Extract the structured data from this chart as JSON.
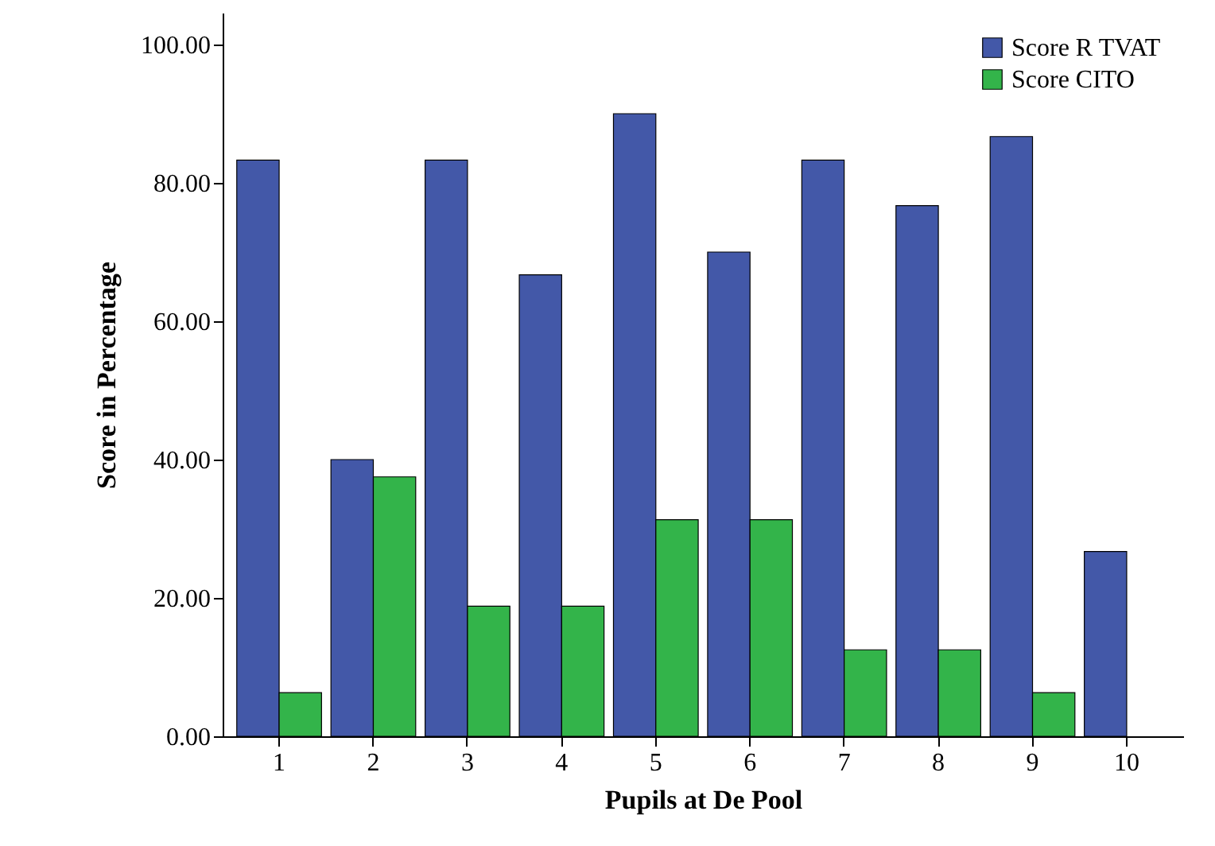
{
  "chart_data": {
    "type": "bar",
    "xlabel": "Pupils at De Pool",
    "ylabel": "Score in Percentage",
    "categories": [
      "1",
      "2",
      "3",
      "4",
      "5",
      "6",
      "7",
      "8",
      "9",
      "10"
    ],
    "series": [
      {
        "name": "Score R TVAT",
        "color": "#4358a8",
        "values": [
          83.3,
          40,
          83.3,
          66.7,
          90,
          70,
          83.3,
          76.7,
          86.7,
          26.7
        ]
      },
      {
        "name": "Score CITO",
        "color": "#33b44a",
        "values": [
          6.3,
          37.5,
          18.8,
          18.8,
          31.3,
          31.3,
          12.5,
          12.5,
          6.3,
          null
        ]
      }
    ],
    "ylim": [
      0,
      104.6
    ],
    "yticks": [
      {
        "value": 0,
        "label": "0.00"
      },
      {
        "value": 20,
        "label": "20.00"
      },
      {
        "value": 40,
        "label": "40.00"
      },
      {
        "value": 60,
        "label": "60.00"
      },
      {
        "value": 80,
        "label": "80.00"
      },
      {
        "value": 100,
        "label": "100.00"
      }
    ],
    "legend": "top right",
    "grid": false
  }
}
